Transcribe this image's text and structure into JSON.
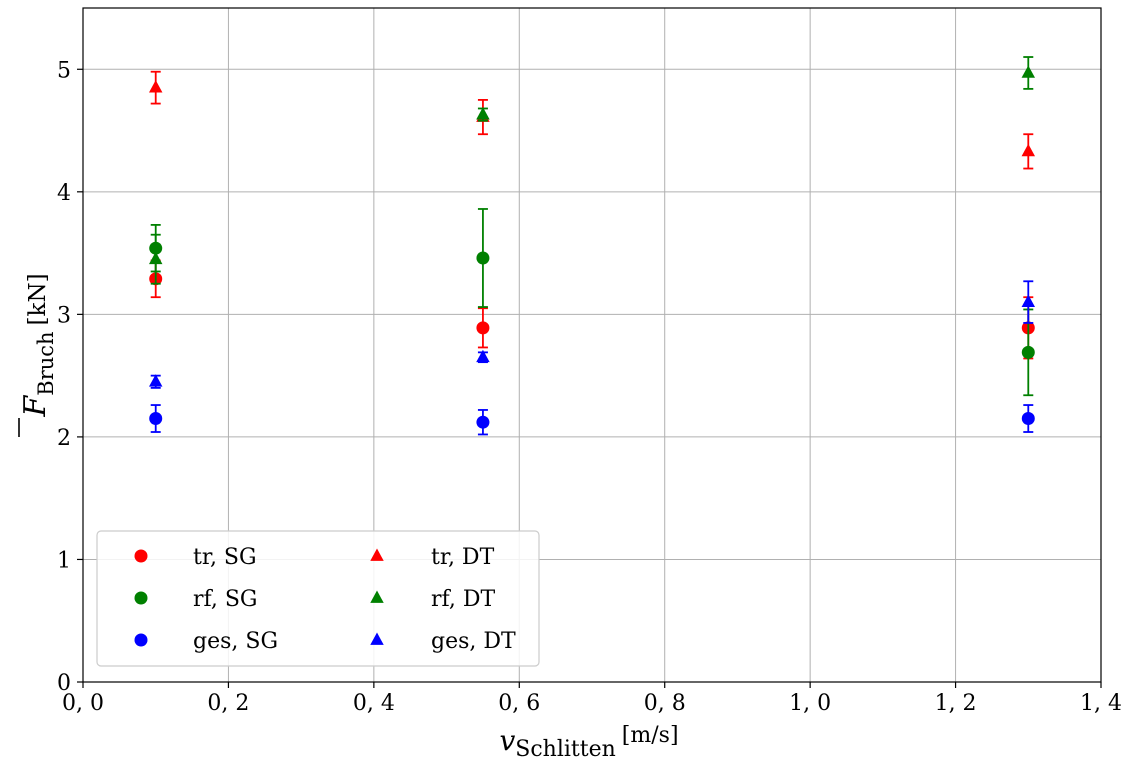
{
  "chart_data": {
    "type": "scatter",
    "title": "",
    "xlabel": {
      "main": "v",
      "sub": "Schlitten",
      "unit": "[m/s]"
    },
    "ylabel": {
      "main": "F",
      "sub": "Bruch",
      "unit": "[kN]"
    },
    "xlim": [
      0.0,
      1.4
    ],
    "ylim": [
      0,
      5.5
    ],
    "xticks": [
      0.0,
      0.2,
      0.4,
      0.6,
      0.8,
      1.0,
      1.2,
      1.4
    ],
    "xtick_labels": [
      "0, 0",
      "0, 2",
      "0, 4",
      "0, 6",
      "0, 8",
      "1, 0",
      "1, 2",
      "1, 4"
    ],
    "yticks": [
      0,
      1,
      2,
      3,
      4,
      5
    ],
    "ytick_labels": [
      "0",
      "1",
      "2",
      "3",
      "4",
      "5"
    ],
    "grid": true,
    "legend_position": "lower-left",
    "error_bars": true,
    "series": [
      {
        "name": "tr, SG",
        "marker": "circle",
        "color": "#ff0000",
        "points": [
          {
            "x": 0.1,
            "y": 3.29,
            "err": 0.15
          },
          {
            "x": 0.55,
            "y": 2.89,
            "err": 0.16
          },
          {
            "x": 1.3,
            "y": 2.89,
            "err": 0.25
          }
        ]
      },
      {
        "name": "rf, SG",
        "marker": "circle",
        "color": "#008000",
        "points": [
          {
            "x": 0.1,
            "y": 3.54,
            "err": 0.19
          },
          {
            "x": 0.55,
            "y": 3.46,
            "err": 0.4
          },
          {
            "x": 1.3,
            "y": 2.69,
            "err": 0.35
          }
        ]
      },
      {
        "name": "ges, SG",
        "marker": "circle",
        "color": "#0000ff",
        "points": [
          {
            "x": 0.1,
            "y": 2.15,
            "err": 0.11
          },
          {
            "x": 0.55,
            "y": 2.12,
            "err": 0.1
          },
          {
            "x": 1.3,
            "y": 2.15,
            "err": 0.11
          }
        ]
      },
      {
        "name": "tr, DT",
        "marker": "triangle",
        "color": "#ff0000",
        "points": [
          {
            "x": 0.1,
            "y": 4.85,
            "err": 0.13
          },
          {
            "x": 0.55,
            "y": 4.61,
            "err": 0.14
          },
          {
            "x": 1.3,
            "y": 4.33,
            "err": 0.14
          }
        ]
      },
      {
        "name": "rf, DT",
        "marker": "triangle",
        "color": "#008000",
        "points": [
          {
            "x": 0.1,
            "y": 3.45,
            "err": 0.2
          },
          {
            "x": 0.55,
            "y": 4.63,
            "err": 0.05
          },
          {
            "x": 1.3,
            "y": 4.97,
            "err": 0.13
          }
        ]
      },
      {
        "name": "ges, DT",
        "marker": "triangle",
        "color": "#0000ff",
        "points": [
          {
            "x": 0.1,
            "y": 2.45,
            "err": 0.05
          },
          {
            "x": 0.55,
            "y": 2.65,
            "err": 0.04
          },
          {
            "x": 1.3,
            "y": 3.1,
            "err": 0.17
          }
        ]
      }
    ]
  }
}
